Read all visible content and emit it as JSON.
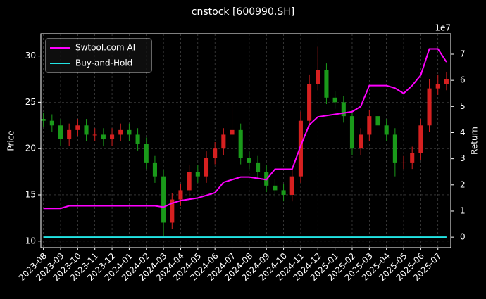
{
  "chart_data": {
    "type": "candlestick",
    "title": "cnstock [600990.SH]",
    "y_label": "Price",
    "y2_label": "Return",
    "y2_offset": "1e7",
    "grid": true,
    "legend": "upper left",
    "xlim": [
      -0.15,
      23.75
    ],
    "xticks": [
      {
        "value": 0,
        "label": "2023-08"
      },
      {
        "value": 1,
        "label": "2023-09"
      },
      {
        "value": 2,
        "label": "2023-10"
      },
      {
        "value": 3,
        "label": "2023-11"
      },
      {
        "value": 4,
        "label": "2023-12"
      },
      {
        "value": 5,
        "label": "2024-01"
      },
      {
        "value": 6,
        "label": "2024-02"
      },
      {
        "value": 7,
        "label": "2024-03"
      },
      {
        "value": 8,
        "label": "2024-04"
      },
      {
        "value": 9,
        "label": "2024-05"
      },
      {
        "value": 10,
        "label": "2024-06"
      },
      {
        "value": 11,
        "label": "2024-07"
      },
      {
        "value": 12,
        "label": "2024-08"
      },
      {
        "value": 13,
        "label": "2024-09"
      },
      {
        "value": 14,
        "label": "2024-10"
      },
      {
        "value": 15,
        "label": "2024-11"
      },
      {
        "value": 16,
        "label": "2024-12"
      },
      {
        "value": 17,
        "label": "2025-01"
      },
      {
        "value": 18,
        "label": "2025-02"
      },
      {
        "value": 19,
        "label": "2025-03"
      },
      {
        "value": 20,
        "label": "2025-04"
      },
      {
        "value": 21,
        "label": "2025-05"
      },
      {
        "value": 22,
        "label": "2025-06"
      },
      {
        "value": 23,
        "label": "2025-07"
      }
    ],
    "ylim": [
      9.3,
      32.4
    ],
    "yticks": [
      10,
      15,
      20,
      25,
      30
    ],
    "y2lim": [
      -0.4,
      7.78
    ],
    "y2ticks": [
      0,
      1,
      2,
      3,
      4,
      5,
      6,
      7
    ],
    "x": [
      0,
      0.5,
      1,
      1.5,
      2,
      2.5,
      3,
      3.5,
      4,
      4.5,
      5,
      5.5,
      6,
      6.5,
      7,
      7.5,
      8,
      8.5,
      9,
      9.5,
      10,
      10.5,
      11,
      11.5,
      12,
      12.5,
      13,
      13.5,
      14,
      14.5,
      15,
      15.5,
      16,
      16.5,
      17,
      17.5,
      18,
      18.5,
      19,
      19.5,
      20,
      20.5,
      21,
      21.5,
      22,
      22.5,
      23,
      23.5
    ],
    "candles": {
      "up_color": "#d62020",
      "down_color": "#1a9a1a",
      "open": [
        23.2,
        23.0,
        22.5,
        21.0,
        22.0,
        22.5,
        21.5,
        21.5,
        21.0,
        21.5,
        22.0,
        21.5,
        20.5,
        18.5,
        17.0,
        12.0,
        14.5,
        15.5,
        17.5,
        17.0,
        19.0,
        20.0,
        21.5,
        22.0,
        19.0,
        18.5,
        17.5,
        16.0,
        15.5,
        15.0,
        17.0,
        23.0,
        27.0,
        28.5,
        25.5,
        25.0,
        23.5,
        20.0,
        21.5,
        23.5,
        22.5,
        21.5,
        18.5,
        18.5,
        19.5,
        22.5,
        26.5,
        27.0
      ],
      "high": [
        23.9,
        23.7,
        23.2,
        22.7,
        23.2,
        23.2,
        22.2,
        22.2,
        22.2,
        22.7,
        22.7,
        22.2,
        21.2,
        19.2,
        17.7,
        15.2,
        16.2,
        18.2,
        18.2,
        19.7,
        20.7,
        22.2,
        25.0,
        22.7,
        19.7,
        19.2,
        18.2,
        16.7,
        16.2,
        17.7,
        24.0,
        28.0,
        31.0,
        29.2,
        26.2,
        25.7,
        24.2,
        22.2,
        24.2,
        24.2,
        23.2,
        22.2,
        19.2,
        20.2,
        23.2,
        27.5,
        28.0,
        28.3
      ],
      "low": [
        22.3,
        21.8,
        20.3,
        20.3,
        21.3,
        20.8,
        20.8,
        20.3,
        20.3,
        20.8,
        20.8,
        19.8,
        17.8,
        16.3,
        10.5,
        11.3,
        13.8,
        14.8,
        16.3,
        16.3,
        18.3,
        19.3,
        20.8,
        18.3,
        17.8,
        16.8,
        15.3,
        14.8,
        14.3,
        14.3,
        16.3,
        22.3,
        26.3,
        24.8,
        24.3,
        22.8,
        19.3,
        19.3,
        20.8,
        21.8,
        20.8,
        17.0,
        17.8,
        17.8,
        18.8,
        21.8,
        25.8,
        26.3
      ],
      "close": [
        23.0,
        22.5,
        21.0,
        22.0,
        22.5,
        21.5,
        21.5,
        21.0,
        21.5,
        22.0,
        21.5,
        20.5,
        18.5,
        17.0,
        12.0,
        14.5,
        15.5,
        17.5,
        17.0,
        19.0,
        20.0,
        21.5,
        22.0,
        19.0,
        18.5,
        17.5,
        16.0,
        15.5,
        15.0,
        17.0,
        23.0,
        27.0,
        28.5,
        25.5,
        25.0,
        23.5,
        20.0,
        21.5,
        23.5,
        22.5,
        21.5,
        18.5,
        18.5,
        19.5,
        22.5,
        26.5,
        27.0,
        27.5
      ]
    },
    "series": [
      {
        "name": "Swtool.com AI",
        "color": "#ff00ff",
        "axis": "y2",
        "values": [
          1.1,
          1.1,
          1.1,
          1.2,
          1.2,
          1.2,
          1.2,
          1.2,
          1.2,
          1.2,
          1.2,
          1.2,
          1.2,
          1.2,
          1.15,
          1.3,
          1.4,
          1.45,
          1.5,
          1.6,
          1.7,
          2.1,
          2.2,
          2.3,
          2.3,
          2.25,
          2.2,
          2.6,
          2.6,
          2.6,
          3.5,
          4.3,
          4.6,
          4.65,
          4.7,
          4.75,
          4.8,
          5.0,
          5.8,
          5.8,
          5.8,
          5.7,
          5.5,
          5.8,
          6.2,
          7.2,
          7.2,
          6.7
        ]
      },
      {
        "name": "Buy-and-Hold",
        "color": "#22e5e5",
        "axis": "y2",
        "values": [
          0,
          0,
          0,
          0,
          0,
          0,
          0,
          0,
          0,
          0,
          0,
          0,
          0,
          0,
          0,
          0,
          0,
          0,
          0,
          0,
          0,
          0,
          0,
          0,
          0,
          0,
          0,
          0,
          0,
          0,
          0,
          0,
          0,
          0,
          0,
          0,
          0,
          0,
          0,
          0,
          0,
          0,
          0,
          0,
          0,
          0,
          0,
          0
        ]
      }
    ]
  }
}
